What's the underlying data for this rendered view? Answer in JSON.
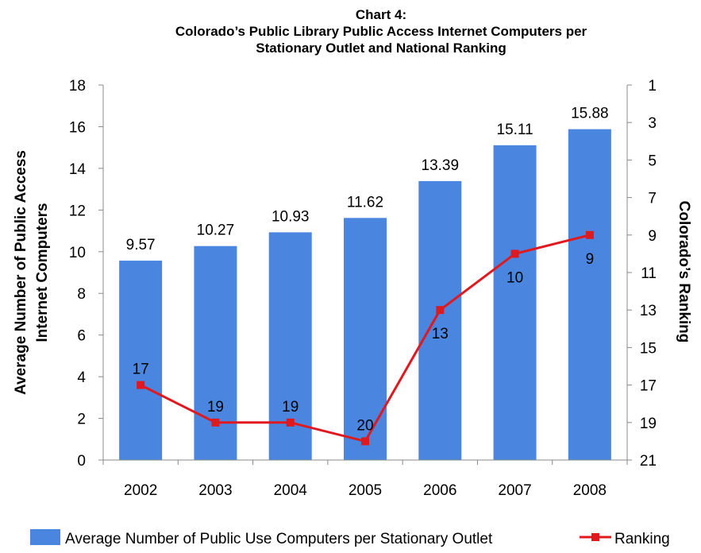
{
  "chart_data": {
    "type": "bar+line",
    "title_lines": [
      "Chart 4:",
      "Colorado’s Public Library Public Access Internet Computers per",
      "Stationary Outlet and National Ranking"
    ],
    "categories": [
      "2002",
      "2003",
      "2004",
      "2005",
      "2006",
      "2007",
      "2008"
    ],
    "series": [
      {
        "name": "Average Number of Public Use Computers per Stationary Outlet",
        "type": "bar",
        "axis": "left",
        "color": "#4a86e0",
        "values": [
          9.57,
          10.27,
          10.93,
          11.62,
          13.39,
          15.11,
          15.88
        ],
        "labels": [
          "9.57",
          "10.27",
          "10.93",
          "11.62",
          "13.39",
          "15.11",
          "15.88"
        ]
      },
      {
        "name": "Ranking",
        "type": "line",
        "axis": "right",
        "color": "#e0191e",
        "values": [
          17,
          19,
          19,
          20,
          13,
          10,
          9
        ],
        "labels": [
          "17",
          "19",
          "19",
          "20",
          "13",
          "10",
          "9"
        ]
      }
    ],
    "y_left": {
      "label_lines": [
        "Average Number of Public Access",
        "Internet Computers"
      ],
      "ylim": [
        0,
        18
      ],
      "ticks": [
        "0",
        "2",
        "4",
        "6",
        "8",
        "10",
        "12",
        "14",
        "16",
        "18"
      ]
    },
    "y_right": {
      "label": "Colorado’s Ranking",
      "ylim": [
        1,
        21
      ],
      "inverted": true,
      "ticks": [
        "1",
        "3",
        "5",
        "7",
        "9",
        "11",
        "13",
        "15",
        "17",
        "19",
        "21"
      ]
    },
    "legend_position": "bottom",
    "grid": false
  }
}
